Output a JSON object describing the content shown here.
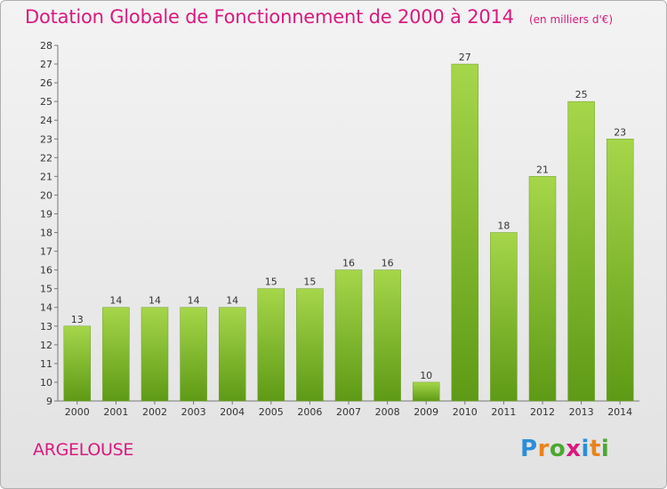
{
  "title": "Dotation Globale de Fonctionnement de 2000 à 2014",
  "subtitle": "(en milliers d'€)",
  "place": "ARGELOUSE",
  "logo": {
    "letters": [
      "P",
      "r",
      "o",
      "x",
      "i",
      "t",
      "i"
    ],
    "colors": [
      "#2a8fd8",
      "#e8841a",
      "#4aa832",
      "#d9197f",
      "#2a8fd8",
      "#e8841a",
      "#4aa832"
    ]
  },
  "colors": {
    "accent": "#d9197f",
    "bar_light": "#a6d64a",
    "bar_dark": "#5e9a16"
  },
  "chart_data": {
    "type": "bar",
    "categories": [
      "2000",
      "2001",
      "2002",
      "2003",
      "2004",
      "2005",
      "2006",
      "2007",
      "2008",
      "2009",
      "2010",
      "2011",
      "2012",
      "2013",
      "2014"
    ],
    "values": [
      13,
      14,
      14,
      14,
      14,
      15,
      15,
      16,
      16,
      10,
      27,
      18,
      21,
      25,
      23
    ],
    "ylim": [
      9,
      28
    ],
    "yticks": [
      "9",
      "10",
      "11",
      "12",
      "13",
      "14",
      "15",
      "16",
      "17",
      "18",
      "19",
      "20",
      "21",
      "22",
      "23",
      "24",
      "25",
      "26",
      "27",
      "28"
    ],
    "grid": false,
    "data_labels": true
  }
}
